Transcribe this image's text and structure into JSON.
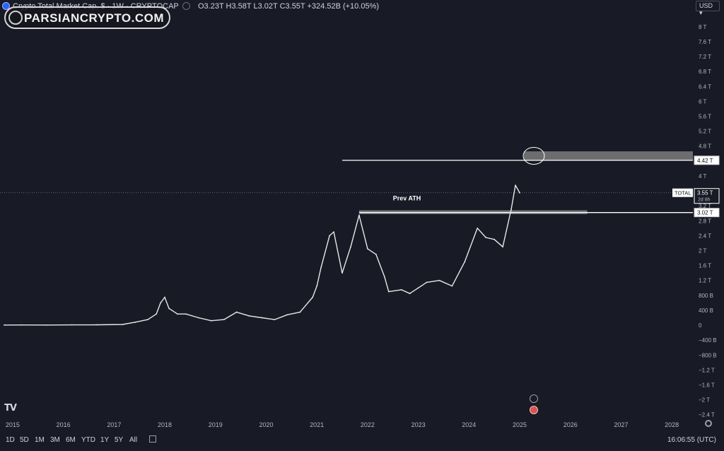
{
  "header": {
    "title": "Crypto Total Market Cap, $ · 1W · CRYPTOCAP",
    "ohlc": "O3.23T H3.58T L3.02T C3.55T +324.52B (+10.05%)"
  },
  "watermark": "PARSIANCRYPTO.COM",
  "currency": "USD",
  "timeframes": [
    "1D",
    "5D",
    "1M",
    "3M",
    "6M",
    "YTD",
    "1Y",
    "5Y",
    "All"
  ],
  "clock": "16:06:55 (UTC)",
  "annotation": "Prev ATH",
  "colors": {
    "background": "#181a25",
    "line": "#e8e8e8",
    "zone": "#8a8a8a",
    "badge_red": "#d9534f"
  },
  "chart_data": {
    "type": "line",
    "series": [
      {
        "x": [
          "2014-11",
          "2015-03",
          "2015-09",
          "2016-03",
          "2016-09",
          "2017-03",
          "2017-06",
          "2017-09",
          "2017-11",
          "2017-12",
          "2018-01",
          "2018-02",
          "2018-04",
          "2018-06",
          "2018-09",
          "2018-12",
          "2019-03",
          "2019-06",
          "2019-09",
          "2019-12",
          "2020-03",
          "2020-06",
          "2020-09",
          "2020-12",
          "2021-01",
          "2021-02",
          "2021-04",
          "2021-05",
          "2021-07",
          "2021-09",
          "2021-11",
          "2022-01",
          "2022-03",
          "2022-05",
          "2022-06",
          "2022-09",
          "2022-11",
          "2023-01",
          "2023-03",
          "2023-06",
          "2023-09",
          "2023-12",
          "2024-03",
          "2024-05",
          "2024-07",
          "2024-09",
          "2024-11",
          "2024-12",
          "2025-01"
        ],
        "values": [
          0.005,
          0.006,
          0.004,
          0.008,
          0.01,
          0.02,
          0.08,
          0.15,
          0.3,
          0.6,
          0.75,
          0.45,
          0.3,
          0.3,
          0.2,
          0.12,
          0.15,
          0.35,
          0.25,
          0.2,
          0.15,
          0.28,
          0.35,
          0.75,
          1.05,
          1.55,
          2.4,
          2.5,
          1.4,
          2.1,
          2.95,
          2.05,
          1.9,
          1.3,
          0.9,
          0.95,
          0.85,
          1.0,
          1.15,
          1.2,
          1.05,
          1.7,
          2.6,
          2.35,
          2.3,
          2.1,
          3.1,
          3.75,
          3.55
        ]
      }
    ],
    "x_ticks": [
      "2015",
      "2016",
      "2017",
      "2018",
      "2019",
      "2020",
      "2021",
      "2022",
      "2023",
      "2024",
      "2025",
      "2026",
      "2027",
      "2028"
    ],
    "y_ticks": [
      "8 T",
      "7.6 T",
      "7.2 T",
      "6.8 T",
      "6.4 T",
      "6 T",
      "5.6 T",
      "5.2 T",
      "4.8 T",
      "4.4 T",
      "4 T",
      "3.6 T",
      "3.2 T",
      "2.8 T",
      "2.4 T",
      "2 T",
      "1.6 T",
      "1.2 T",
      "800 B",
      "400 B",
      "0",
      "−400 B",
      "−800 B",
      "−1.2 T",
      "−1.6 T",
      "−2 T",
      "−2.4 T"
    ],
    "y_tick_values": [
      8,
      7.6,
      7.2,
      6.8,
      6.4,
      6,
      5.6,
      5.2,
      4.8,
      4.4,
      4,
      3.6,
      3.2,
      2.8,
      2.4,
      2,
      1.6,
      1.2,
      0.8,
      0.4,
      0,
      -0.4,
      -0.8,
      -1.2,
      -1.6,
      -2,
      -2.4
    ],
    "ylim": [
      -2.5,
      8.3
    ],
    "xlim": [
      "2014-10",
      "2028-06"
    ],
    "levels": [
      {
        "label": "4.42 T",
        "value": 4.42,
        "x_start": "2021-07"
      },
      {
        "label": "3.02 T",
        "value": 3.02,
        "x_start": "2021-11"
      }
    ],
    "zones": [
      {
        "from": "2025-02",
        "to": "2028-06",
        "low": 4.42,
        "high": 4.66
      },
      {
        "from": "2021-11",
        "to": "2026-05",
        "low": 2.98,
        "high": 3.08
      }
    ],
    "price_tag": {
      "name": "TOTAL",
      "value": 3.55,
      "label": "3.55 T",
      "countdown": "2d 8h"
    }
  }
}
